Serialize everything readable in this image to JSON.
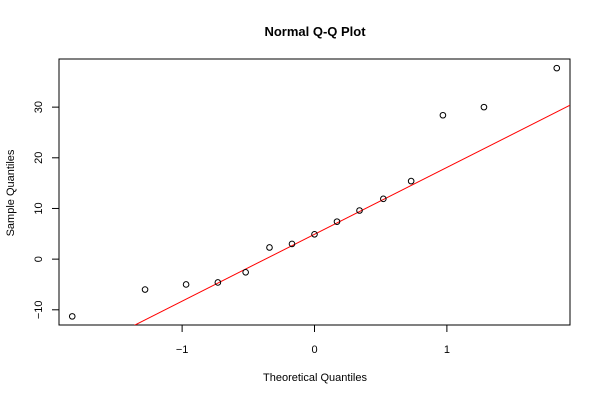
{
  "chart_data": {
    "type": "scatter",
    "title": "Normal Q-Q Plot",
    "xlabel": "Theoretical Quantiles",
    "ylabel": "Sample Quantiles",
    "xlim": [
      -1.93,
      1.93
    ],
    "ylim": [
      -13,
      39.5
    ],
    "x_ticks": [
      -1,
      0,
      1
    ],
    "x_tick_labels": [
      "−1",
      "0",
      "1"
    ],
    "y_ticks": [
      -10,
      0,
      10,
      20,
      30
    ],
    "y_tick_labels": [
      "−10",
      "0",
      "10",
      "20",
      "30"
    ],
    "grid": false,
    "points": [
      {
        "x": -1.83,
        "y": -11.3
      },
      {
        "x": -1.28,
        "y": -6.0
      },
      {
        "x": -0.97,
        "y": -5.0
      },
      {
        "x": -0.73,
        "y": -4.6
      },
      {
        "x": -0.52,
        "y": -2.6
      },
      {
        "x": -0.34,
        "y": 2.3
      },
      {
        "x": -0.17,
        "y": 3.0
      },
      {
        "x": 0.0,
        "y": 4.9
      },
      {
        "x": 0.17,
        "y": 7.4
      },
      {
        "x": 0.34,
        "y": 9.6
      },
      {
        "x": 0.52,
        "y": 11.9
      },
      {
        "x": 0.73,
        "y": 15.4
      },
      {
        "x": 0.97,
        "y": 28.4
      },
      {
        "x": 1.28,
        "y": 30.0
      },
      {
        "x": 1.83,
        "y": 37.7
      }
    ],
    "reference_line": {
      "intercept": 4.9,
      "slope": 13.2,
      "color": "#ff0000"
    },
    "point_color": "#000000"
  }
}
